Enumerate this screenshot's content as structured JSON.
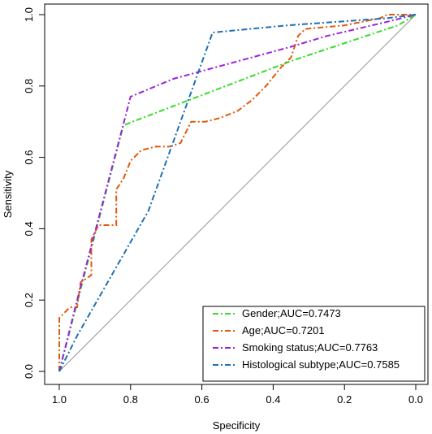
{
  "chart_data": {
    "type": "line",
    "title": "",
    "xlabel": "Specificity",
    "ylabel": "Sensitivity",
    "xlim": [
      1.0,
      0.0
    ],
    "ylim": [
      0.0,
      1.0
    ],
    "xticks": [
      "1.0",
      "0.8",
      "0.6",
      "0.4",
      "0.2",
      "0.0"
    ],
    "yticks": [
      "0.0",
      "0.2",
      "0.4",
      "0.6",
      "0.8",
      "1.0"
    ],
    "grid": false,
    "legend_position": "bottom-right",
    "reference_line": true,
    "reference_color": "#999999",
    "series": [
      {
        "name": "Gender;AUC=0.7473",
        "color": "#33dd22",
        "points": [
          [
            1.0,
            0.0
          ],
          [
            0.82,
            0.69
          ],
          [
            0.35,
            0.87
          ],
          [
            0.05,
            0.97
          ],
          [
            0.0,
            1.0
          ]
        ]
      },
      {
        "name": "Age;AUC=0.7201",
        "color": "#e05a0c",
        "points": [
          [
            1.0,
            0.0
          ],
          [
            1.0,
            0.15
          ],
          [
            0.97,
            0.18
          ],
          [
            0.95,
            0.18
          ],
          [
            0.94,
            0.25
          ],
          [
            0.91,
            0.27
          ],
          [
            0.91,
            0.37
          ],
          [
            0.89,
            0.41
          ],
          [
            0.84,
            0.41
          ],
          [
            0.84,
            0.51
          ],
          [
            0.82,
            0.54
          ],
          [
            0.8,
            0.59
          ],
          [
            0.77,
            0.62
          ],
          [
            0.73,
            0.63
          ],
          [
            0.69,
            0.63
          ],
          [
            0.66,
            0.64
          ],
          [
            0.63,
            0.7
          ],
          [
            0.59,
            0.7
          ],
          [
            0.55,
            0.71
          ],
          [
            0.5,
            0.73
          ],
          [
            0.46,
            0.76
          ],
          [
            0.42,
            0.8
          ],
          [
            0.38,
            0.85
          ],
          [
            0.35,
            0.88
          ],
          [
            0.33,
            0.94
          ],
          [
            0.31,
            0.96
          ],
          [
            0.2,
            0.97
          ],
          [
            0.1,
            0.99
          ],
          [
            0.08,
            1.0
          ],
          [
            0.05,
            1.0
          ],
          [
            0.0,
            1.0
          ]
        ]
      },
      {
        "name": "Smoking status;AUC=0.7763",
        "color": "#9922dd",
        "points": [
          [
            1.0,
            0.0
          ],
          [
            0.95,
            0.2
          ],
          [
            0.8,
            0.77
          ],
          [
            0.68,
            0.82
          ],
          [
            0.35,
            0.91
          ],
          [
            0.25,
            0.94
          ],
          [
            0.08,
            0.98
          ],
          [
            0.0,
            1.0
          ]
        ]
      },
      {
        "name": "Histological subtype;AUC=0.7585",
        "color": "#1f6fb4",
        "points": [
          [
            1.0,
            0.0
          ],
          [
            0.95,
            0.1
          ],
          [
            0.75,
            0.45
          ],
          [
            0.57,
            0.95
          ],
          [
            0.36,
            0.97
          ],
          [
            0.08,
            0.99
          ],
          [
            0.0,
            1.0
          ]
        ]
      }
    ]
  }
}
